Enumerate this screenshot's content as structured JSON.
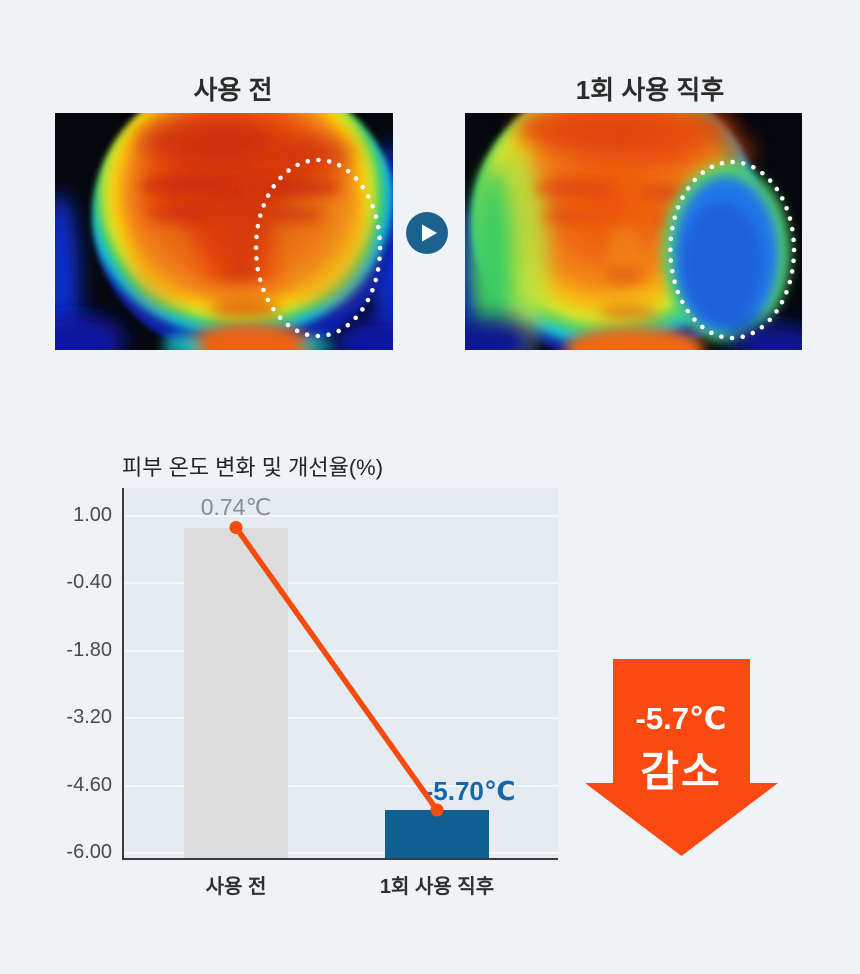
{
  "comparison": {
    "before_label": "사용 전",
    "after_label": "1회 사용 직후",
    "play_button_color": "#1b628f"
  },
  "chart_data": {
    "type": "bar",
    "title": "피부 온도 변화 및 개선율(%)",
    "categories": [
      "사용 전",
      "1회 사용 직후"
    ],
    "values": [
      0.74,
      -5.7
    ],
    "value_labels": [
      "0.74℃",
      "-5.70℃"
    ],
    "yticks": [
      1.0,
      -0.4,
      -1.8,
      -3.2,
      -4.6,
      -6.0
    ],
    "ytick_labels": [
      "1.00",
      "-0.40",
      "-1.80",
      "-3.20",
      "-4.60",
      "-6.00"
    ],
    "ylim": [
      -6.0,
      1.0
    ],
    "xlabel": "",
    "ylabel": "",
    "grid": true,
    "legend": false,
    "bar_colors": [
      "#dcdcdc",
      "#0f5f90"
    ],
    "value_label_colors": [
      "#8b8b8b",
      "#1566ab"
    ],
    "connector_line_color": "#f74a0d"
  },
  "callout": {
    "line1": "-5.7℃",
    "line2": "감소",
    "color": "#fa4a11"
  }
}
